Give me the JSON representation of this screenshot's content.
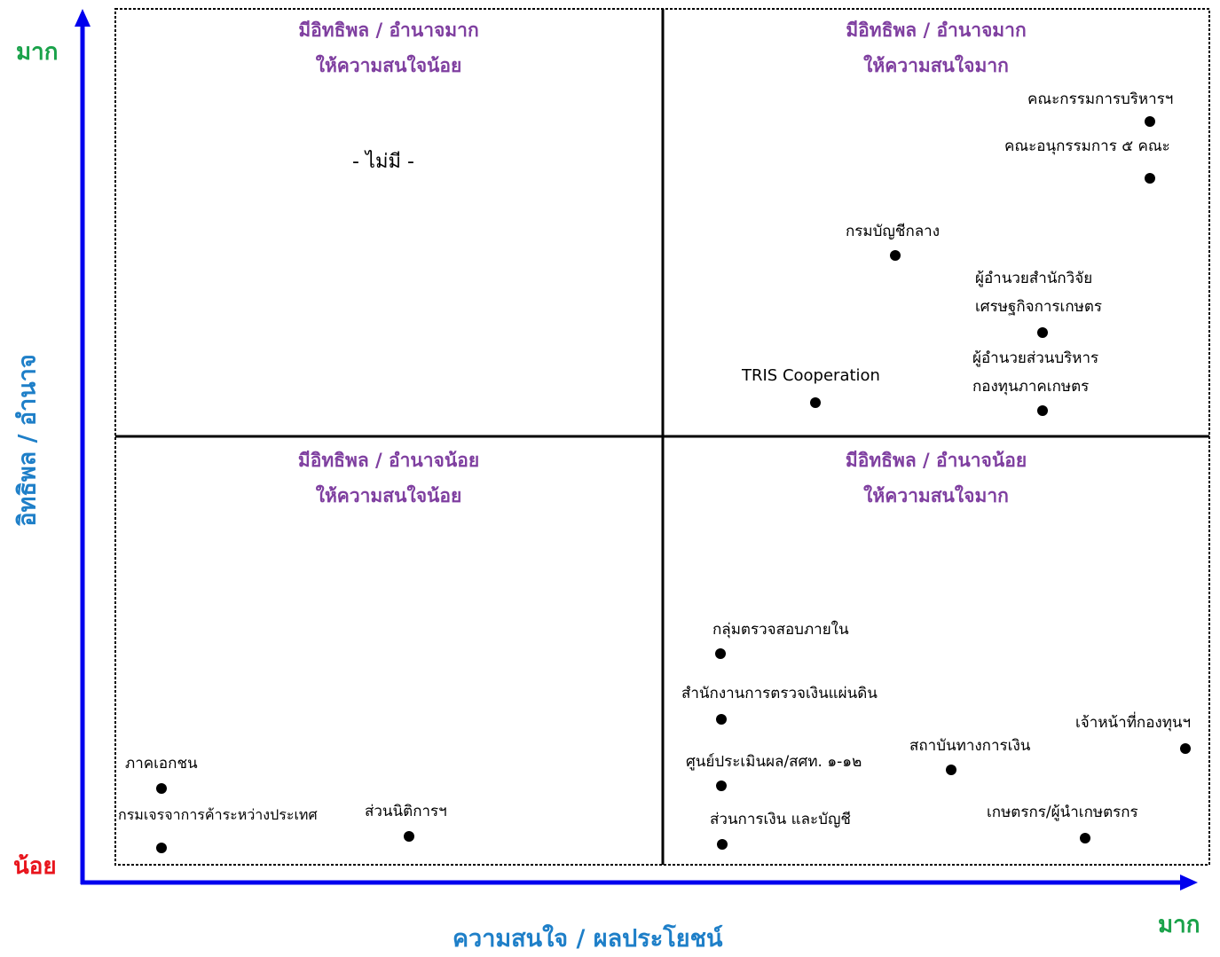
{
  "axes": {
    "y_label": "อิทธิพล / อำนาจ",
    "x_label": "ความสนใจ / ผลประโยชน์",
    "y_high": "มาก",
    "y_low": "น้อย",
    "x_high": "มาก"
  },
  "colors": {
    "axis": "#0000ee",
    "axis_label": "#1e7fc8",
    "quadrant_title": "#7f3fa0",
    "high": "#1aa24a",
    "low": "#e8141c"
  },
  "quadrants": {
    "top_left": {
      "line1": "มีอิทธิพล / อำนาจมาก",
      "line2": "ให้ความสนใจน้อย",
      "empty_text": "- ไม่มี -"
    },
    "top_right": {
      "line1": "มีอิทธิพล / อำนาจมาก",
      "line2": "ให้ความสนใจมาก"
    },
    "bottom_left": {
      "line1": "มีอิทธิพล / อำนาจน้อย",
      "line2": "ให้ความสนใจน้อย"
    },
    "bottom_right": {
      "line1": "มีอิทธิพล / อำนาจน้อย",
      "line2": "ให้ความสนใจมาก"
    }
  },
  "stakeholders": [
    {
      "id": "board",
      "lines": [
        "คณะกรรมการบริหารฯ"
      ]
    },
    {
      "id": "subcommittees",
      "lines": [
        "คณะอนุกรรมการ ๕ คณะ"
      ]
    },
    {
      "id": "comptroller",
      "lines": [
        "กรมบัญชีกลาง"
      ]
    },
    {
      "id": "research-director",
      "lines": [
        "ผู้อำนวยสำนักวิจัย",
        "เศรษฐกิจการเกษตร"
      ]
    },
    {
      "id": "fund-director",
      "lines": [
        "ผู้อำนวยส่วนบริหาร",
        "กองทุนภาคเกษตร"
      ]
    },
    {
      "id": "tris",
      "lines": [
        "TRIS Cooperation"
      ]
    },
    {
      "id": "internal-audit",
      "lines": [
        "กลุ่มตรวจสอบภายใน"
      ]
    },
    {
      "id": "state-audit",
      "lines": [
        "สำนักงานการตรวจเงินแผ่นดิน"
      ]
    },
    {
      "id": "evaluation-center",
      "lines": [
        "ศูนย์ประเมินผล/สศท. ๑-๑๒"
      ]
    },
    {
      "id": "finance-division",
      "lines": [
        "ส่วนการเงิน และบัญชี"
      ]
    },
    {
      "id": "financial-institutions",
      "lines": [
        "สถาบันทางการเงิน"
      ]
    },
    {
      "id": "fund-officers",
      "lines": [
        "เจ้าหน้าที่กองทุนฯ"
      ]
    },
    {
      "id": "farmers",
      "lines": [
        "เกษตรกร/ผู้นำเกษตรกร"
      ]
    },
    {
      "id": "private-sector",
      "lines": [
        "ภาคเอกชน"
      ]
    },
    {
      "id": "trade-negotiations",
      "lines": [
        "กรมเจรจาการค้าระหว่างประเทศ"
      ]
    },
    {
      "id": "legal-division",
      "lines": [
        "ส่วนนิติการฯ"
      ]
    }
  ]
}
